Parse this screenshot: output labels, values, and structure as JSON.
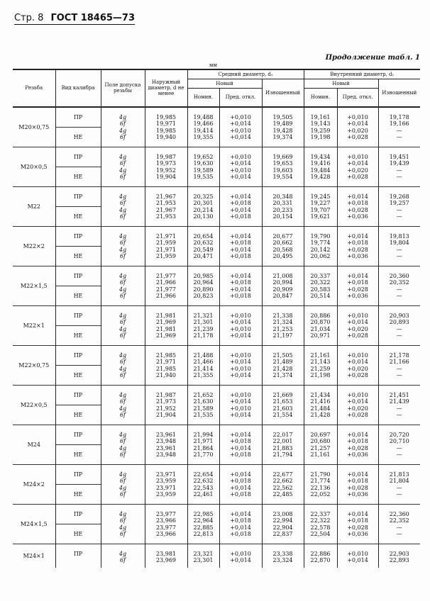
{
  "header": {
    "page": "Стр. 8",
    "standard": "ГОСТ 18465—73"
  },
  "continuation": "Продолжение табл. 1",
  "unit": "мм",
  "columns": {
    "thread": "Резьба",
    "gauge_type": "Вид калибра",
    "tolerance": "Поле допуска резьбы",
    "outer": "Наружный диаметр, d не менее",
    "pitch_group": "Средний диаметр, d₂",
    "inner_group": "Внутренний диаметр, d₁",
    "new": "Новый",
    "nominal": "Номин.",
    "deviation": "Пред. откл.",
    "worn": "Изношенный"
  },
  "rows": [
    {
      "thread": "М20×0,75",
      "kinds": [
        "ПР",
        "НЕ"
      ],
      "tol": [
        "4g",
        "6f",
        "4g",
        "6f"
      ],
      "d": [
        "19,985",
        "19,971",
        "19,985",
        "19,940"
      ],
      "d2_nom": [
        "19,488",
        "19,466",
        "19,414",
        "19,355"
      ],
      "d2_dev": [
        "+0,010",
        "+0,014",
        "+0,010",
        "+0,014"
      ],
      "d2_worn": [
        "19,505",
        "19,489",
        "19,428",
        "19,374"
      ],
      "d1_nom": [
        "19,161",
        "19,143",
        "19,259",
        "19,198"
      ],
      "d1_dev": [
        "+0,010",
        "+0,014",
        "+0,020",
        "+0,028"
      ],
      "d1_worn": [
        "19,178",
        "19,166",
        "—",
        "—"
      ]
    },
    {
      "thread": "М20×0,5",
      "kinds": [
        "ПР",
        "НЕ"
      ],
      "tol": [
        "4g",
        "6f",
        "4g",
        "6f"
      ],
      "d": [
        "19,987",
        "19,973",
        "19,952",
        "19,904"
      ],
      "d2_nom": [
        "19,652",
        "19,630",
        "19,589",
        "19,535"
      ],
      "d2_dev": [
        "+0,010",
        "+0,014",
        "+0,010",
        "+0,014"
      ],
      "d2_worn": [
        "19,669",
        "19,653",
        "19,603",
        "19,554"
      ],
      "d1_nom": [
        "19,434",
        "19,416",
        "19,484",
        "19,428"
      ],
      "d1_dev": [
        "+0,010",
        "+0,014",
        "+0,020",
        "+0,028"
      ],
      "d1_worn": [
        "19,451",
        "19,439",
        "—",
        "—"
      ]
    },
    {
      "thread": "М22",
      "kinds": [
        "ПР",
        "НЕ"
      ],
      "tol": [
        "4g",
        "6f",
        "4g",
        "6f"
      ],
      "d": [
        "21,967",
        "21,953",
        "21,967",
        "21,953"
      ],
      "d2_nom": [
        "20,325",
        "20,301",
        "20,214",
        "20,130"
      ],
      "d2_dev": [
        "+0,014",
        "+0,018",
        "+0,014",
        "+0,018"
      ],
      "d2_worn": [
        "20,348",
        "20,331",
        "20,233",
        "20,154"
      ],
      "d1_nom": [
        "19,245",
        "19,227",
        "19,707",
        "19,621"
      ],
      "d1_dev": [
        "+0,014",
        "+0,018",
        "+0,028",
        "+0,036"
      ],
      "d1_worn": [
        "19,268",
        "19,257",
        "—",
        "—"
      ]
    },
    {
      "thread": "М22×2",
      "kinds": [
        "ПР",
        "НЕ"
      ],
      "tol": [
        "4g",
        "6f",
        "4g",
        "6f"
      ],
      "d": [
        "21,971",
        "21,959",
        "21,971",
        "21,959"
      ],
      "d2_nom": [
        "20,654",
        "20,632",
        "20,549",
        "20,471"
      ],
      "d2_dev": [
        "+0,014",
        "+0,018",
        "+0,014",
        "+0,018"
      ],
      "d2_worn": [
        "20,677",
        "20,662",
        "20,568",
        "20,495"
      ],
      "d1_nom": [
        "19,790",
        "19,774",
        "20,142",
        "20,062"
      ],
      "d1_dev": [
        "+0,014",
        "+0,018",
        "+0,028",
        "+0,036"
      ],
      "d1_worn": [
        "19,813",
        "19,804",
        "—",
        "—"
      ]
    },
    {
      "thread": "М22×1,5",
      "kinds": [
        "ПР",
        "НЕ"
      ],
      "tol": [
        "4g",
        "6f",
        "4g",
        "6f"
      ],
      "d": [
        "21,977",
        "21,966",
        "21,977",
        "21,966"
      ],
      "d2_nom": [
        "20,985",
        "20,964",
        "20,890",
        "20,823"
      ],
      "d2_dev": [
        "+0,014",
        "+0,018",
        "+0,014",
        "+0,018"
      ],
      "d2_worn": [
        "21,008",
        "20,994",
        "20,909",
        "20,847"
      ],
      "d1_nom": [
        "20,337",
        "20,322",
        "20,583",
        "20,514"
      ],
      "d1_dev": [
        "+0,014",
        "+0,018",
        "+0,028",
        "+0,036"
      ],
      "d1_worn": [
        "20,360",
        "20,352",
        "—",
        "—"
      ]
    },
    {
      "thread": "М22×1",
      "kinds": [
        "ПР",
        "НЕ"
      ],
      "tol": [
        "4g",
        "6f",
        "4g",
        "6f"
      ],
      "d": [
        "21,981",
        "21,969",
        "21,981",
        "21,969"
      ],
      "d2_nom": [
        "21,321",
        "21,301",
        "21,239",
        "21,178"
      ],
      "d2_dev": [
        "+0,010",
        "+0,014",
        "+0,010",
        "+0,014"
      ],
      "d2_worn": [
        "21,338",
        "21,324",
        "21,253",
        "21,197"
      ],
      "d1_nom": [
        "20,886",
        "20,870",
        "21,034",
        "20,971"
      ],
      "d1_dev": [
        "+0,010",
        "+0,014",
        "+0,020",
        "+0,028"
      ],
      "d1_worn": [
        "20,903",
        "20,893",
        "—",
        "—"
      ]
    },
    {
      "thread": "М22×0,75",
      "kinds": [
        "ПР",
        "НЕ"
      ],
      "tol": [
        "4g",
        "6f",
        "4g",
        "6f"
      ],
      "d": [
        "21,985",
        "21,971",
        "21,985",
        "21,940"
      ],
      "d2_nom": [
        "21,488",
        "21,466",
        "21,414",
        "21,355"
      ],
      "d2_dev": [
        "+0,010",
        "+0,014",
        "+0,010",
        "+0,014"
      ],
      "d2_worn": [
        "21,505",
        "21,489",
        "21,428",
        "21,374"
      ],
      "d1_nom": [
        "21,161",
        "21,143",
        "21,259",
        "21,198"
      ],
      "d1_dev": [
        "+0,010",
        "+0,014",
        "+0,020",
        "+0,028"
      ],
      "d1_worn": [
        "21,178",
        "21,166",
        "—",
        "—"
      ]
    },
    {
      "thread": "М22×0,5",
      "kinds": [
        "ПР",
        "НЕ"
      ],
      "tol": [
        "4g",
        "6f",
        "4g",
        "6f"
      ],
      "d": [
        "21,987",
        "21,973",
        "21,952",
        "21,904"
      ],
      "d2_nom": [
        "21,652",
        "21,630",
        "21,589",
        "21,535"
      ],
      "d2_dev": [
        "+0,010",
        "+0,014",
        "+0,010",
        "+0,014"
      ],
      "d2_worn": [
        "21,669",
        "21,653",
        "21,603",
        "21,554"
      ],
      "d1_nom": [
        "21,434",
        "21,416",
        "21,484",
        "21,428"
      ],
      "d1_dev": [
        "+0,010",
        "+0,014",
        "+0,020",
        "+0,028"
      ],
      "d1_worn": [
        "21,451",
        "21,439",
        "—",
        "—"
      ]
    },
    {
      "thread": "М24",
      "kinds": [
        "ПР",
        "НЕ"
      ],
      "tol": [
        "4g",
        "6f",
        "4g",
        "6f"
      ],
      "d": [
        "23,961",
        "23,948",
        "23,961",
        "23,948"
      ],
      "d2_nom": [
        "21,994",
        "21,971",
        "21,864",
        "21,770"
      ],
      "d2_dev": [
        "+0,014",
        "+0,018",
        "+0,014",
        "+0,018"
      ],
      "d2_worn": [
        "22,017",
        "22,001",
        "21,883",
        "21,794"
      ],
      "d1_nom": [
        "20,697",
        "20,680",
        "21,257",
        "21,161"
      ],
      "d1_dev": [
        "+0,014",
        "+0,018",
        "+0,028",
        "+0,036"
      ],
      "d1_worn": [
        "20,720",
        "20,710",
        "—",
        "—"
      ]
    },
    {
      "thread": "М24×2",
      "kinds": [
        "ПР",
        "НЕ"
      ],
      "tol": [
        "4g",
        "6f",
        "4g",
        "6f"
      ],
      "d": [
        "23,971",
        "23,959",
        "23,971",
        "23,959"
      ],
      "d2_nom": [
        "22,654",
        "22,632",
        "22,543",
        "22,461"
      ],
      "d2_dev": [
        "+0,014",
        "+0,018",
        "+0,014",
        "+0,018"
      ],
      "d2_worn": [
        "22,677",
        "22,662",
        "22,562",
        "22,485"
      ],
      "d1_nom": [
        "21,790",
        "21,774",
        "22,136",
        "22,052"
      ],
      "d1_dev": [
        "+0,014",
        "+0,018",
        "+0,028",
        "+0,036"
      ],
      "d1_worn": [
        "21,813",
        "21,804",
        "—",
        "—"
      ]
    },
    {
      "thread": "М24×1,5",
      "kinds": [
        "ПР",
        "НЕ"
      ],
      "tol": [
        "4g",
        "6f",
        "4g",
        "6f"
      ],
      "d": [
        "23,977",
        "23,966",
        "23,977",
        "23,966"
      ],
      "d2_nom": [
        "22,985",
        "22,964",
        "22,885",
        "22,813"
      ],
      "d2_dev": [
        "+0,014",
        "+0,018",
        "+0,014",
        "+0,018"
      ],
      "d2_worn": [
        "23,008",
        "22,994",
        "22,904",
        "22,837"
      ],
      "d1_nom": [
        "22,337",
        "22,322",
        "22,578",
        "22,504"
      ],
      "d1_dev": [
        "+0,014",
        "+0,018",
        "+0,028",
        "+0,036"
      ],
      "d1_worn": [
        "22,360",
        "22,352",
        "—",
        "—"
      ]
    },
    {
      "thread": "М24×1",
      "kinds": [
        "ПР"
      ],
      "tol": [
        "4g",
        "6f"
      ],
      "d": [
        "23,981",
        "23,969"
      ],
      "d2_nom": [
        "23,321",
        "23,301"
      ],
      "d2_dev": [
        "+0,010",
        "+0,014"
      ],
      "d2_worn": [
        "23,338",
        "23,324"
      ],
      "d1_nom": [
        "22,886",
        "22,870"
      ],
      "d1_dev": [
        "+0,010",
        "+0,014"
      ],
      "d1_worn": [
        "22,903",
        "22,893"
      ]
    }
  ]
}
